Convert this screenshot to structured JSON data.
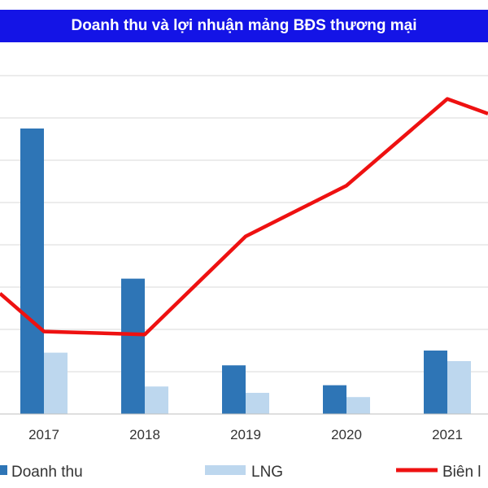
{
  "chart_data": {
    "type": "bar",
    "title": "Doanh thu và lợi nhuận mảng BĐS thương mại",
    "categories": [
      "2017",
      "2018",
      "2019",
      "2020",
      "2021"
    ],
    "series": [
      {
        "name": "Doanh thu",
        "type": "bar",
        "color": "#2e75b6",
        "values": [
          6.75,
          3.2,
          1.15,
          0.68,
          1.5
        ]
      },
      {
        "name": "LNG",
        "type": "bar",
        "color": "#bdd7ee",
        "values": [
          1.45,
          0.65,
          0.5,
          0.4,
          1.25
        ]
      },
      {
        "name": "Biên lợi nhuận gộp",
        "type": "line",
        "color": "#ee1111",
        "values": [
          1.95,
          1.88,
          4.2,
          5.4,
          7.45
        ]
      }
    ],
    "line_offscreen": {
      "left_start": 2.85,
      "right_end": 7.1
    },
    "ylim": [
      0,
      8
    ],
    "grid": true,
    "legend": "bottom",
    "legend_labels": {
      "bar1": "Doanh thu",
      "bar2": "LNG",
      "line": "Biên l"
    }
  }
}
